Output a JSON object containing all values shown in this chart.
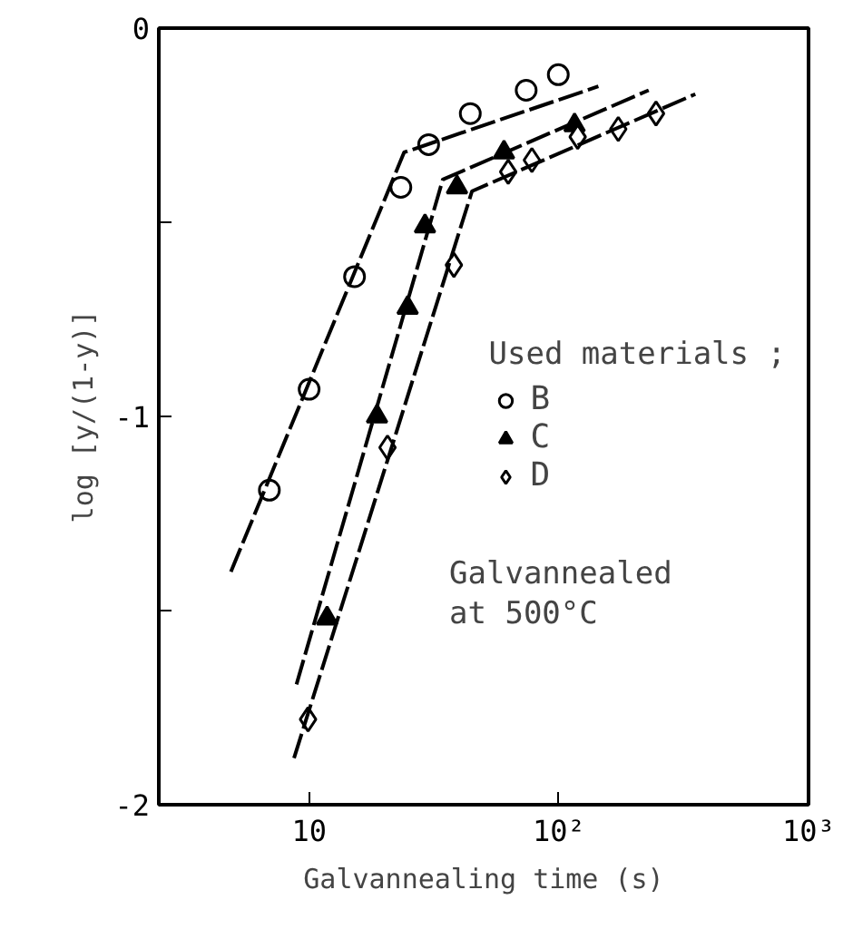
{
  "chart_data": {
    "type": "scatter",
    "xlabel": "Galvannealing time (s)",
    "ylabel": "log [y/(1-y)]",
    "log": "x",
    "xlim": [
      2.5,
      1000
    ],
    "ylim": [
      -2,
      0
    ],
    "xticks": [
      10,
      {
        "value": 100,
        "label": "10²"
      },
      {
        "value": 1000,
        "label": "10³"
      }
    ],
    "yticks": [
      {
        "value": -2,
        "label": "-2"
      },
      {
        "value": -1.5,
        "label": null
      },
      {
        "value": -1,
        "label": "-1"
      },
      {
        "value": -0.5,
        "label": null
      },
      0
    ],
    "grid": false,
    "legend": "right",
    "legend_title": "Used materials ;",
    "annotations": [
      "Galvannealed\nat 500°C"
    ],
    "series": [
      {
        "name": "B",
        "color": "#000000",
        "marker": "circle",
        "x": [
          6.93,
          10,
          15.2,
          23.3,
          30.1,
          44.2,
          74,
          99.5
        ],
        "values": [
          -1.19,
          -0.93,
          -0.64,
          -0.41,
          -0.3,
          -0.22,
          -0.16,
          -0.12
        ]
      },
      {
        "name": "C",
        "color": "#000000",
        "marker": "triangle",
        "x": [
          11.8,
          18.7,
          24.8,
          29.1,
          39.1,
          60.3,
          115.6
        ],
        "values": [
          -1.52,
          -1.0,
          -0.72,
          -0.51,
          -0.41,
          -0.32,
          -0.25
        ]
      },
      {
        "name": "D",
        "color": "#000000",
        "marker": "diamond",
        "x": [
          9.9,
          20.6,
          38,
          62.7,
          78,
          119,
          173,
          245
        ],
        "values": [
          -1.78,
          -1.08,
          -0.61,
          -0.37,
          -0.34,
          -0.28,
          -0.26,
          -0.22
        ]
      },
      {
        "type": "line",
        "color": "#000000",
        "line_style": "dashed",
        "marker": "none",
        "x": [
          4.86,
          24,
          144
        ],
        "values": [
          -1.4,
          -0.32,
          -0.15
        ]
      },
      {
        "type": "line",
        "color": "#000000",
        "line_style": "dashed",
        "marker": "none",
        "x": [
          8.9,
          34.3,
          229
        ],
        "values": [
          -1.69,
          -0.39,
          -0.16
        ]
      },
      {
        "type": "line",
        "color": "#000000",
        "line_style": "dashed",
        "marker": "none",
        "x": [
          8.7,
          44.9,
          352
        ],
        "values": [
          -1.88,
          -0.42,
          -0.17
        ]
      }
    ]
  }
}
